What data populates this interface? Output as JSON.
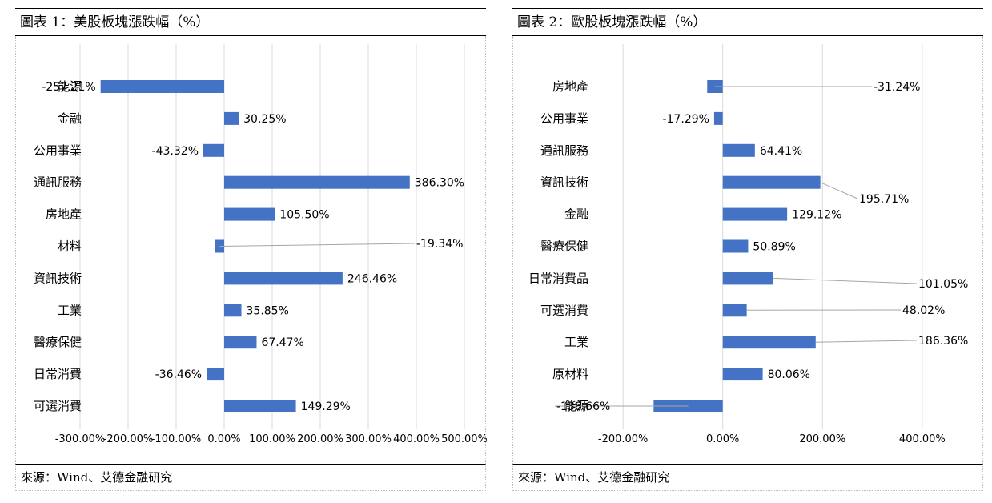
{
  "panels": [
    {
      "title": "圖表 1：美股板塊漲跌幅（%）",
      "source": "來源：Wind、艾德金融研究"
    },
    {
      "title": "圖表 2：歐股板塊漲跌幅（%）",
      "source": "來源：Wind、艾德金融研究"
    }
  ],
  "chart_data": [
    {
      "type": "bar",
      "orientation": "horizontal",
      "title": "圖表 1：美股板塊漲跌幅（%）",
      "categories": [
        "能源",
        "金融",
        "公用事業",
        "通訊服務",
        "房地產",
        "材料",
        "資訊技術",
        "工業",
        "醫療保健",
        "日常消費",
        "可選消費"
      ],
      "values": [
        -257.21,
        30.25,
        -43.32,
        386.3,
        105.5,
        -19.34,
        246.46,
        35.85,
        67.47,
        -36.46,
        149.29
      ],
      "value_labels": [
        "-257.21%",
        "30.25%",
        "-43.32%",
        "386.30%",
        "105.50%",
        "-19.34%",
        "246.46%",
        "35.85%",
        "67.47%",
        "-36.46%",
        "149.29%"
      ],
      "xlim": [
        -300,
        500
      ],
      "xticks": [
        -300,
        -200,
        -100,
        0,
        100,
        200,
        300,
        400,
        500
      ],
      "xtick_labels": [
        "-300.00%",
        "-200.00%",
        "-100.00%",
        "0.00%",
        "100.00%",
        "200.00%",
        "300.00%",
        "400.00%",
        "500.00%"
      ],
      "grid": true,
      "bar_color": "#4472c4",
      "grid_color": "#d9d9d9",
      "leader_color": "#a6a6a6"
    },
    {
      "type": "bar",
      "orientation": "horizontal",
      "title": "圖表 2：歐股板塊漲跌幅（%）",
      "categories": [
        "房地產",
        "公用事業",
        "通訊服務",
        "資訊技術",
        "金融",
        "醫療保健",
        "日常消費品",
        "可選消費",
        "工業",
        "原材料",
        "能源"
      ],
      "values": [
        -31.24,
        -17.29,
        64.41,
        195.71,
        129.12,
        50.89,
        101.05,
        48.02,
        186.36,
        80.06,
        -138.66
      ],
      "value_labels": [
        "-31.24%",
        "-17.29%",
        "64.41%",
        "195.71%",
        "129.12%",
        "50.89%",
        "101.05%",
        "48.02%",
        "186.36%",
        "80.06%",
        "-138.66%"
      ],
      "xlim": [
        -250,
        450
      ],
      "xticks": [
        -200,
        0,
        200,
        400
      ],
      "xtick_labels": [
        "-200.00%",
        "0.00%",
        "200.00%",
        "400.00%"
      ],
      "grid": true,
      "bar_color": "#4472c4",
      "grid_color": "#d9d9d9",
      "leader_color": "#a6a6a6"
    }
  ]
}
